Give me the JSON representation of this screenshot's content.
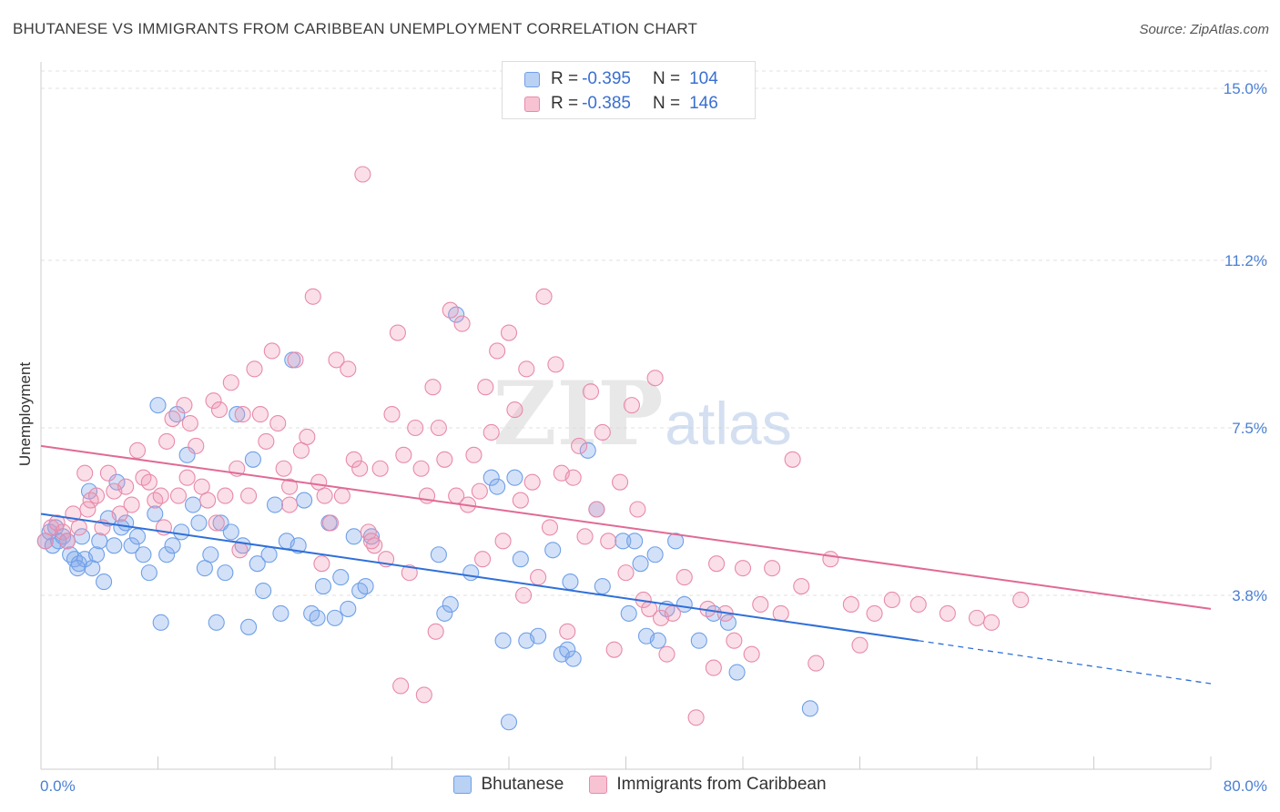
{
  "title": "BHUTANESE VS IMMIGRANTS FROM CARIBBEAN UNEMPLOYMENT CORRELATION CHART",
  "source": "Source: ZipAtlas.com",
  "watermark": {
    "zip": "ZIP",
    "atlas": "atlas"
  },
  "legend": {
    "series1": {
      "r_label": "R =",
      "r_value": "-0.395",
      "n_label": "N =",
      "n_value": "104",
      "color": "#6fa0e8",
      "fill": "#b9d1f3"
    },
    "series2": {
      "r_label": "R =",
      "r_value": "-0.385",
      "n_label": "N =",
      "n_value": "146",
      "color": "#e88aaa",
      "fill": "#f7c3d3"
    }
  },
  "bottom_legend": {
    "series1": "Bhutanese",
    "series2": "Immigrants from Caribbean"
  },
  "chart_data": {
    "type": "scatter",
    "ylabel": "Unemployment",
    "xlim": [
      0,
      80
    ],
    "ylim": [
      0,
      16
    ],
    "x_tick_labels": [
      "0.0%",
      "80.0%"
    ],
    "y_ticks": [
      {
        "value": 3.8,
        "label": "3.8%"
      },
      {
        "value": 7.5,
        "label": "7.5%"
      },
      {
        "value": 11.2,
        "label": "11.2%"
      },
      {
        "value": 15.0,
        "label": "15.0%"
      }
    ],
    "grid": true,
    "series": [
      {
        "name": "Bhutanese",
        "color": "#6fa0e8",
        "fill": "rgba(130,170,235,0.35)",
        "trend": {
          "x0": 0,
          "y0": 5.6,
          "x1": 60,
          "y1": 2.8,
          "dash_to_x": 80,
          "dash_to_y": 1.85
        },
        "points": [
          [
            0.3,
            5.0
          ],
          [
            0.6,
            5.2
          ],
          [
            0.8,
            4.9
          ],
          [
            1.0,
            5.3
          ],
          [
            1.2,
            5.0
          ],
          [
            1.5,
            5.1
          ],
          [
            1.8,
            5.0
          ],
          [
            2.0,
            4.7
          ],
          [
            2.3,
            4.6
          ],
          [
            2.6,
            4.5
          ],
          [
            2.8,
            5.1
          ],
          [
            3.0,
            4.6
          ],
          [
            3.3,
            6.1
          ],
          [
            3.5,
            4.4
          ],
          [
            3.8,
            4.7
          ],
          [
            4.0,
            5.0
          ],
          [
            4.3,
            4.1
          ],
          [
            4.6,
            5.5
          ],
          [
            5.0,
            4.9
          ],
          [
            5.2,
            6.3
          ],
          [
            5.5,
            5.3
          ],
          [
            5.8,
            5.4
          ],
          [
            6.2,
            4.9
          ],
          [
            6.6,
            5.1
          ],
          [
            7.0,
            4.7
          ],
          [
            7.4,
            4.3
          ],
          [
            7.8,
            5.6
          ],
          [
            8.2,
            3.2
          ],
          [
            8.6,
            4.7
          ],
          [
            9.0,
            4.9
          ],
          [
            9.3,
            7.8
          ],
          [
            9.6,
            5.2
          ],
          [
            10.0,
            6.9
          ],
          [
            10.4,
            5.8
          ],
          [
            10.8,
            5.4
          ],
          [
            11.2,
            4.4
          ],
          [
            11.6,
            4.7
          ],
          [
            12.0,
            3.2
          ],
          [
            12.3,
            5.4
          ],
          [
            12.6,
            4.3
          ],
          [
            13.0,
            5.2
          ],
          [
            13.4,
            7.8
          ],
          [
            13.8,
            4.9
          ],
          [
            14.2,
            3.1
          ],
          [
            14.5,
            6.8
          ],
          [
            14.8,
            4.5
          ],
          [
            15.2,
            3.9
          ],
          [
            15.6,
            4.7
          ],
          [
            16.0,
            5.8
          ],
          [
            16.4,
            3.4
          ],
          [
            16.8,
            5.0
          ],
          [
            17.2,
            9.0
          ],
          [
            17.6,
            4.9
          ],
          [
            18.0,
            5.9
          ],
          [
            18.5,
            3.4
          ],
          [
            18.9,
            3.3
          ],
          [
            19.3,
            4.0
          ],
          [
            19.7,
            5.4
          ],
          [
            20.1,
            3.3
          ],
          [
            20.5,
            4.2
          ],
          [
            21.0,
            3.5
          ],
          [
            21.4,
            5.1
          ],
          [
            21.8,
            3.9
          ],
          [
            22.2,
            4.0
          ],
          [
            22.6,
            5.1
          ],
          [
            27.2,
            4.7
          ],
          [
            27.6,
            3.4
          ],
          [
            28.0,
            3.6
          ],
          [
            28.4,
            10.0
          ],
          [
            29.4,
            4.3
          ],
          [
            30.8,
            6.4
          ],
          [
            31.2,
            6.2
          ],
          [
            31.6,
            2.8
          ],
          [
            32.4,
            6.4
          ],
          [
            32.8,
            4.6
          ],
          [
            33.2,
            2.8
          ],
          [
            34.0,
            2.9
          ],
          [
            35.0,
            4.8
          ],
          [
            35.6,
            2.5
          ],
          [
            36.0,
            2.6
          ],
          [
            36.2,
            4.1
          ],
          [
            36.4,
            2.4
          ],
          [
            37.4,
            7.0
          ],
          [
            38.0,
            5.7
          ],
          [
            38.4,
            4.0
          ],
          [
            39.8,
            5.0
          ],
          [
            40.2,
            3.4
          ],
          [
            40.6,
            5.0
          ],
          [
            41.0,
            4.5
          ],
          [
            41.4,
            2.9
          ],
          [
            42.0,
            4.7
          ],
          [
            42.2,
            2.8
          ],
          [
            42.8,
            3.5
          ],
          [
            43.4,
            5.0
          ],
          [
            44.0,
            3.6
          ],
          [
            45.0,
            2.8
          ],
          [
            46.0,
            3.4
          ],
          [
            47.0,
            3.2
          ],
          [
            47.6,
            2.1
          ],
          [
            52.6,
            1.3
          ],
          [
            32.0,
            1.0
          ],
          [
            8.0,
            8.0
          ],
          [
            2.5,
            4.4
          ]
        ]
      },
      {
        "name": "Immigrants from Caribbean",
        "color": "#e88aaa",
        "fill": "rgba(240,150,180,0.30)",
        "trend": {
          "x0": 0,
          "y0": 7.1,
          "x1": 80,
          "y1": 3.5
        },
        "points": [
          [
            0.3,
            5.0
          ],
          [
            0.7,
            5.3
          ],
          [
            1.1,
            5.4
          ],
          [
            1.5,
            5.2
          ],
          [
            1.8,
            5.0
          ],
          [
            2.2,
            5.6
          ],
          [
            2.6,
            5.3
          ],
          [
            3.0,
            6.5
          ],
          [
            3.4,
            5.9
          ],
          [
            3.8,
            6.0
          ],
          [
            4.2,
            5.3
          ],
          [
            4.6,
            6.5
          ],
          [
            5.0,
            6.1
          ],
          [
            5.4,
            5.6
          ],
          [
            5.8,
            6.2
          ],
          [
            6.2,
            5.8
          ],
          [
            6.6,
            7.0
          ],
          [
            7.0,
            6.4
          ],
          [
            7.4,
            6.3
          ],
          [
            7.8,
            5.9
          ],
          [
            8.2,
            6.0
          ],
          [
            8.6,
            7.2
          ],
          [
            9.0,
            7.7
          ],
          [
            9.4,
            6.0
          ],
          [
            9.8,
            8.0
          ],
          [
            10.2,
            7.6
          ],
          [
            10.6,
            7.1
          ],
          [
            11.0,
            6.2
          ],
          [
            11.4,
            5.9
          ],
          [
            11.8,
            8.1
          ],
          [
            12.2,
            7.9
          ],
          [
            12.6,
            6.0
          ],
          [
            13.0,
            8.5
          ],
          [
            13.4,
            6.6
          ],
          [
            13.8,
            7.8
          ],
          [
            14.2,
            6.0
          ],
          [
            14.6,
            8.8
          ],
          [
            15.0,
            7.8
          ],
          [
            15.4,
            7.2
          ],
          [
            15.8,
            9.2
          ],
          [
            16.2,
            7.6
          ],
          [
            16.6,
            6.6
          ],
          [
            17.0,
            6.2
          ],
          [
            17.4,
            9.0
          ],
          [
            17.8,
            7.0
          ],
          [
            18.2,
            7.3
          ],
          [
            18.6,
            10.4
          ],
          [
            19.0,
            6.3
          ],
          [
            19.4,
            6.0
          ],
          [
            19.8,
            5.4
          ],
          [
            20.2,
            9.0
          ],
          [
            20.6,
            6.0
          ],
          [
            21.0,
            8.8
          ],
          [
            21.4,
            6.8
          ],
          [
            21.8,
            6.6
          ],
          [
            22.0,
            13.1
          ],
          [
            22.4,
            5.2
          ],
          [
            22.8,
            4.9
          ],
          [
            23.2,
            6.6
          ],
          [
            23.6,
            4.6
          ],
          [
            24.0,
            7.8
          ],
          [
            24.4,
            9.6
          ],
          [
            24.8,
            6.9
          ],
          [
            25.2,
            4.3
          ],
          [
            25.6,
            7.5
          ],
          [
            26.0,
            6.6
          ],
          [
            26.4,
            6.0
          ],
          [
            26.8,
            8.4
          ],
          [
            27.2,
            7.5
          ],
          [
            27.6,
            6.8
          ],
          [
            28.0,
            10.1
          ],
          [
            28.4,
            6.0
          ],
          [
            28.8,
            9.8
          ],
          [
            29.2,
            5.8
          ],
          [
            29.6,
            6.9
          ],
          [
            30.0,
            6.1
          ],
          [
            30.4,
            8.4
          ],
          [
            30.8,
            7.4
          ],
          [
            31.2,
            9.2
          ],
          [
            31.6,
            5.0
          ],
          [
            32.0,
            9.6
          ],
          [
            32.4,
            7.9
          ],
          [
            32.8,
            5.9
          ],
          [
            33.2,
            8.8
          ],
          [
            33.6,
            6.3
          ],
          [
            34.0,
            4.2
          ],
          [
            34.4,
            10.4
          ],
          [
            34.8,
            5.3
          ],
          [
            35.2,
            8.9
          ],
          [
            35.6,
            6.5
          ],
          [
            36.0,
            3.0
          ],
          [
            36.4,
            6.4
          ],
          [
            36.8,
            7.1
          ],
          [
            37.2,
            5.1
          ],
          [
            37.6,
            8.3
          ],
          [
            38.0,
            5.7
          ],
          [
            38.4,
            7.4
          ],
          [
            38.8,
            5.0
          ],
          [
            39.2,
            2.6
          ],
          [
            39.6,
            6.3
          ],
          [
            40.0,
            4.3
          ],
          [
            40.4,
            8.0
          ],
          [
            40.8,
            5.7
          ],
          [
            41.2,
            3.7
          ],
          [
            41.6,
            3.5
          ],
          [
            42.0,
            8.6
          ],
          [
            42.4,
            3.3
          ],
          [
            42.8,
            2.5
          ],
          [
            43.2,
            3.4
          ],
          [
            44.0,
            4.2
          ],
          [
            44.8,
            1.1
          ],
          [
            45.6,
            3.5
          ],
          [
            46.2,
            4.5
          ],
          [
            46.8,
            3.4
          ],
          [
            47.4,
            2.8
          ],
          [
            48.0,
            4.4
          ],
          [
            48.6,
            2.5
          ],
          [
            49.2,
            3.6
          ],
          [
            50.0,
            4.4
          ],
          [
            50.6,
            3.4
          ],
          [
            51.4,
            6.8
          ],
          [
            52.0,
            4.0
          ],
          [
            53.0,
            2.3
          ],
          [
            54.0,
            4.6
          ],
          [
            55.4,
            3.6
          ],
          [
            56.0,
            2.7
          ],
          [
            57.0,
            3.4
          ],
          [
            58.2,
            3.7
          ],
          [
            60.0,
            3.6
          ],
          [
            62.0,
            3.4
          ],
          [
            64.0,
            3.3
          ],
          [
            65.0,
            3.2
          ],
          [
            67.0,
            3.7
          ],
          [
            24.6,
            1.8
          ],
          [
            26.2,
            1.6
          ],
          [
            30.2,
            4.6
          ],
          [
            27.0,
            3.0
          ],
          [
            19.2,
            4.5
          ],
          [
            22.6,
            5.0
          ],
          [
            17.0,
            5.8
          ],
          [
            13.6,
            4.8
          ],
          [
            12.0,
            5.4
          ],
          [
            3.2,
            5.7
          ],
          [
            8.4,
            5.3
          ],
          [
            10.0,
            6.4
          ],
          [
            46.0,
            2.2
          ],
          [
            33.0,
            3.8
          ]
        ]
      }
    ]
  }
}
